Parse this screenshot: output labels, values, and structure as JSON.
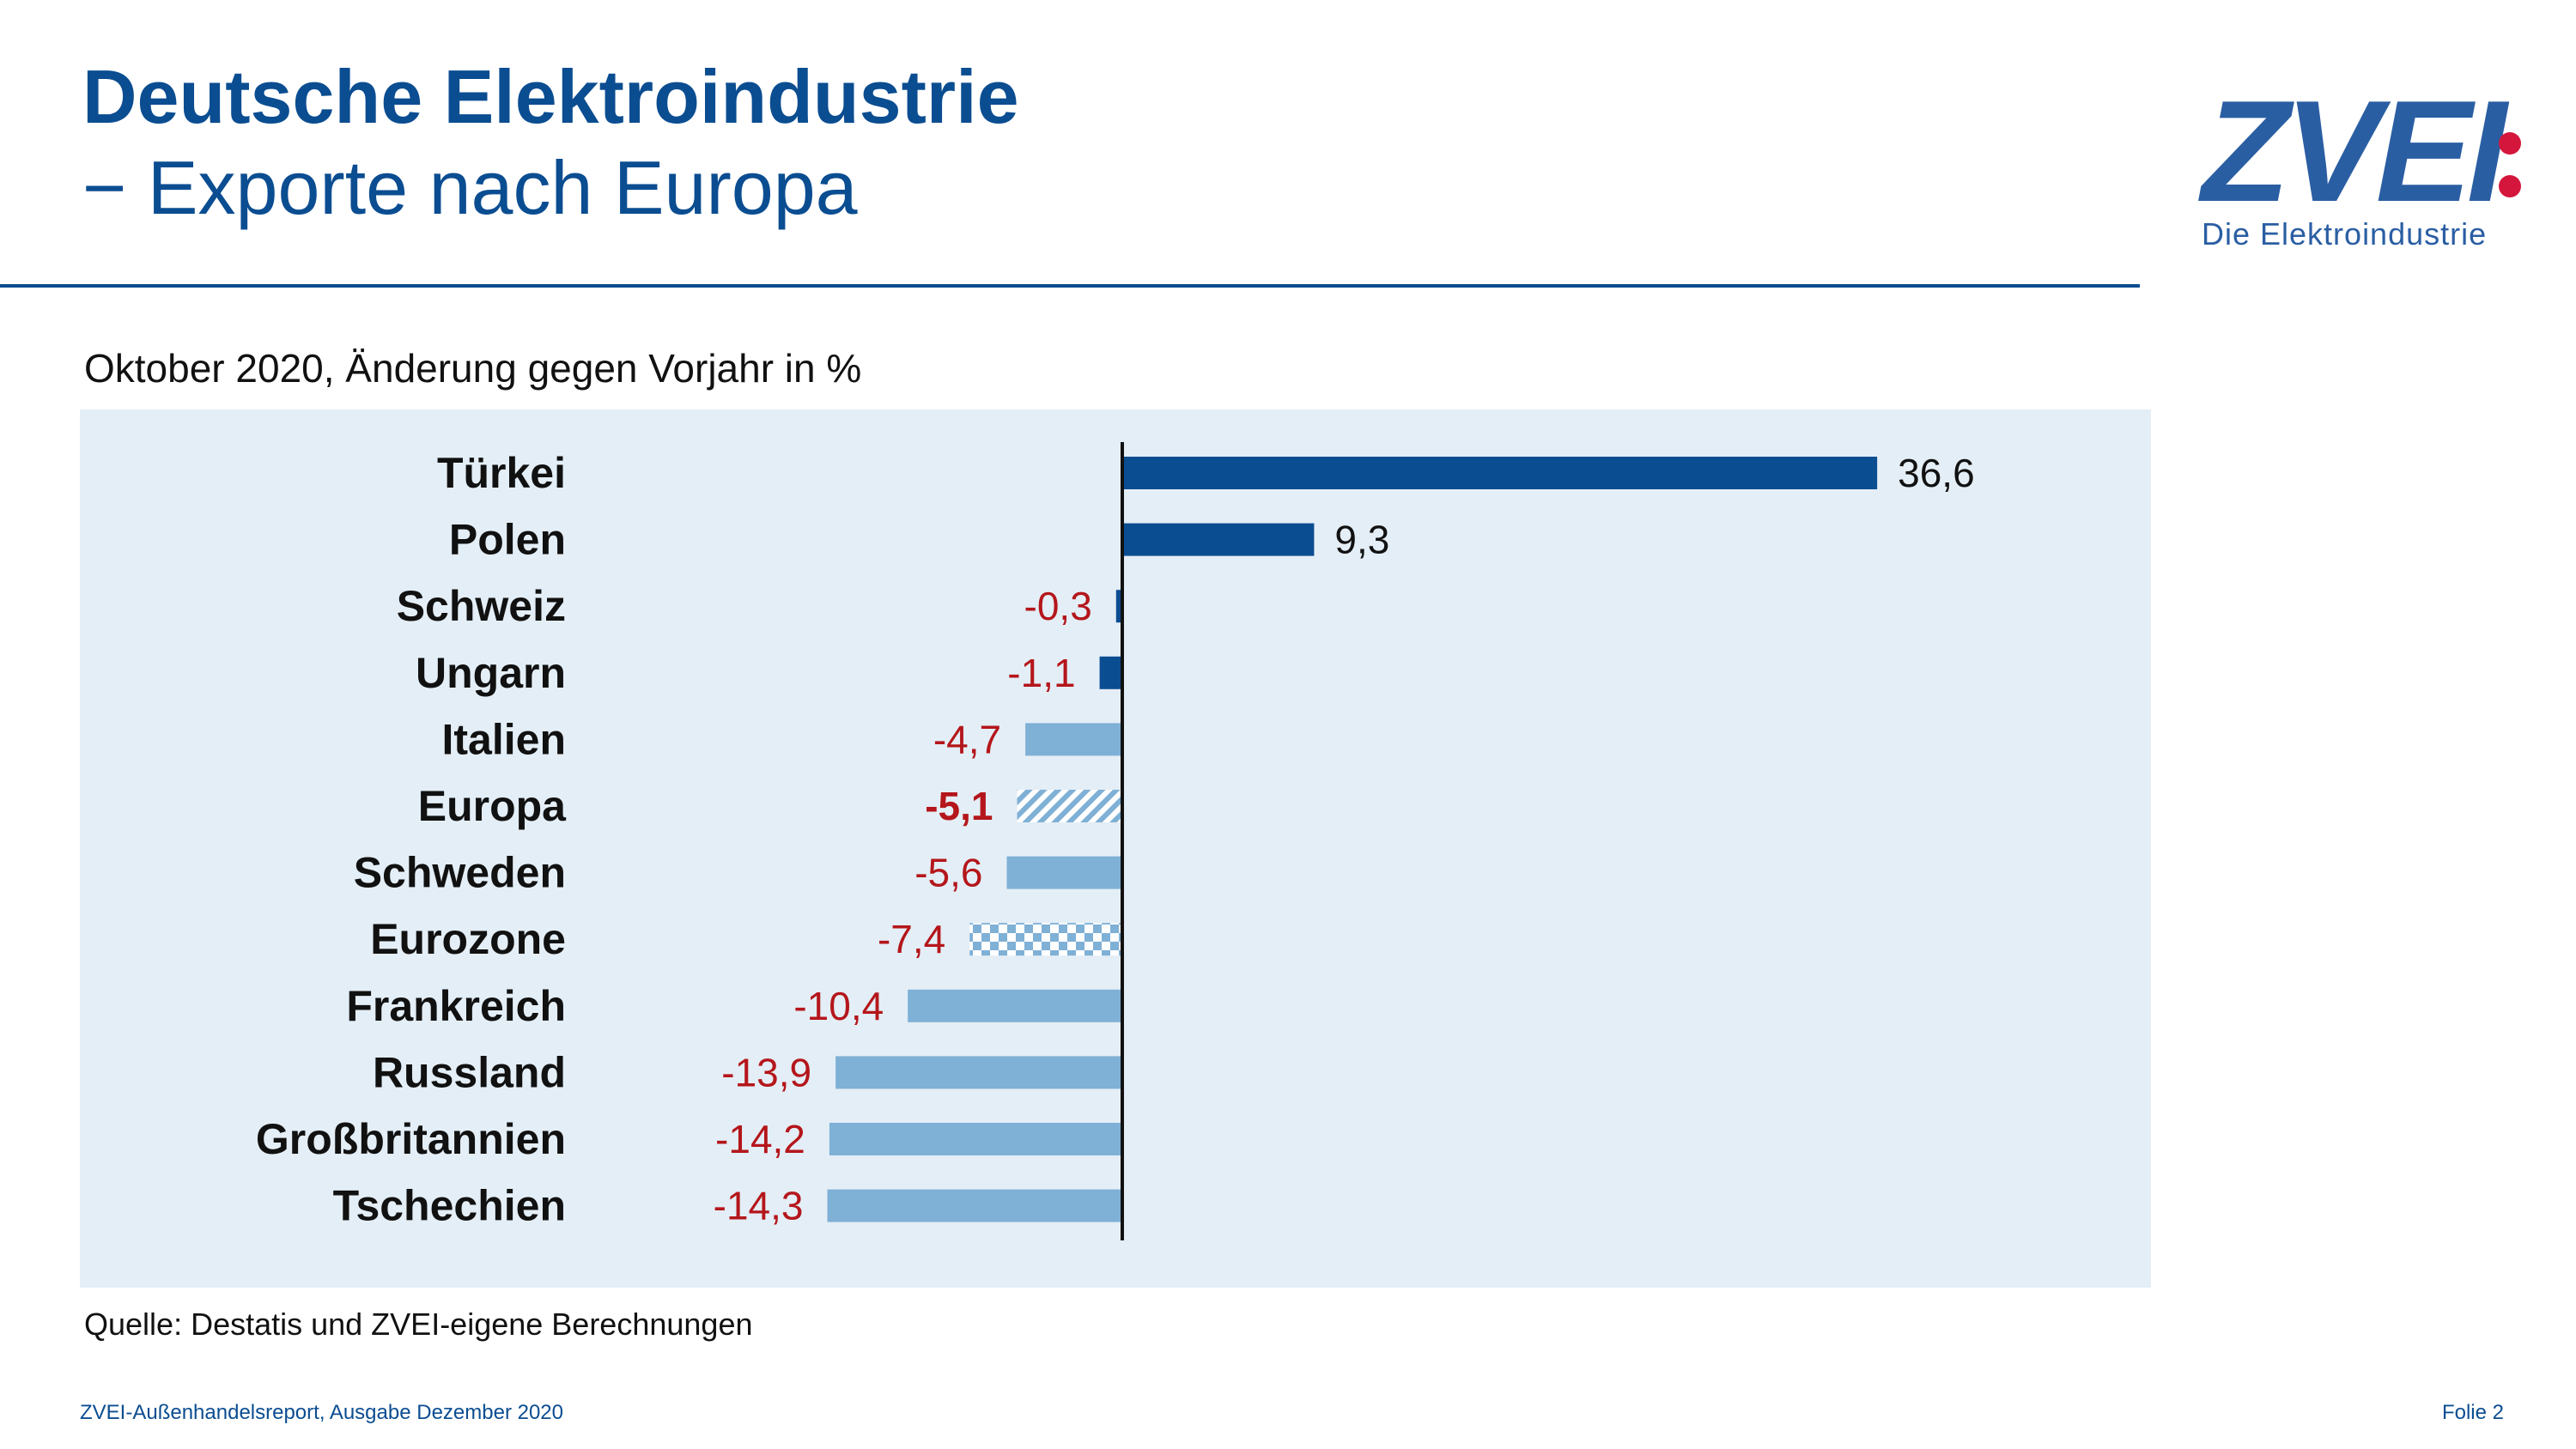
{
  "header": {
    "title": "Deutsche Elektroindustrie",
    "subtitle": "− Exporte nach Europa"
  },
  "logo": {
    "wordmark": "ZVEI",
    "tagline": "Die Elektroindustrie",
    "dots_color": "#d4163c",
    "color": "#2a5ea3"
  },
  "chart_data": {
    "type": "bar",
    "orientation": "horizontal",
    "title": "Oktober 2020, Änderung gegen Vorjahr in %",
    "categories": [
      "Türkei",
      "Polen",
      "Schweiz",
      "Ungarn",
      "Italien",
      "Europa",
      "Schweden",
      "Eurozone",
      "Frankreich",
      "Russland",
      "Großbritannien",
      "Tschechien"
    ],
    "values": [
      36.6,
      9.3,
      -0.3,
      -1.1,
      -4.7,
      -5.1,
      -5.6,
      -7.4,
      -10.4,
      -13.9,
      -14.2,
      -14.3
    ],
    "value_labels": [
      "36,6",
      "9,3",
      "-0,3",
      "-1,1",
      "-4,7",
      "-5,1",
      "-5,6",
      "-7,4",
      "-10,4",
      "-13,9",
      "-14,2",
      "-14,3"
    ],
    "bar_styles": [
      "dark",
      "dark",
      "dark",
      "dark",
      "light",
      "hatched",
      "light",
      "checkered",
      "light",
      "light",
      "light",
      "light"
    ],
    "bold_label_index": 5,
    "colors": {
      "dark": "#0b4d91",
      "light": "#7fb0d6",
      "positive_label": "#111111",
      "negative_label": "#b4161b",
      "panel_background": "#e4eef6"
    },
    "grid": false,
    "legend": "none",
    "xlim": [
      -14.3,
      36.6
    ]
  },
  "source": "Quelle: Destatis und ZVEI-eigene Berechnungen",
  "footer": {
    "left": "ZVEI-Außenhandelsreport, Ausgabe Dezember 2020",
    "right": "Folie 2"
  }
}
